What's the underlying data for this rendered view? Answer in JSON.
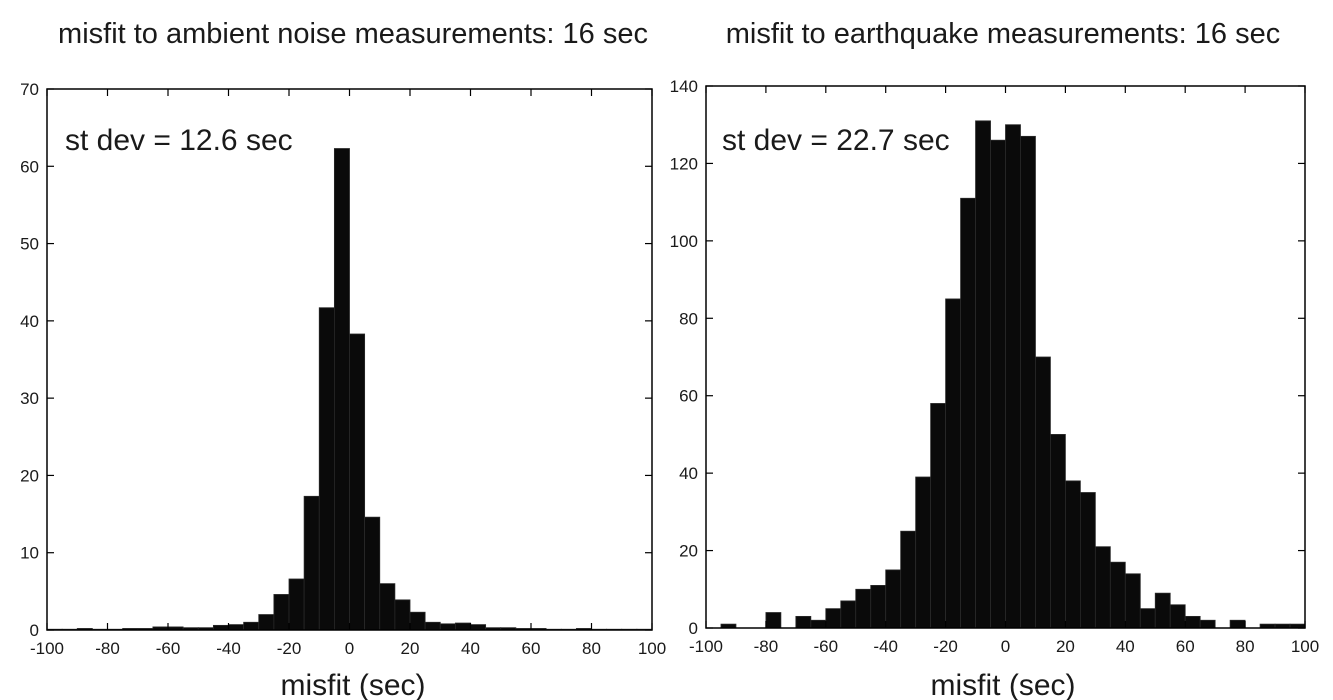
{
  "chart_data": [
    {
      "type": "bar",
      "title": "misfit to ambient noise measurements: 16 sec",
      "xlabel": "misfit (sec)",
      "ylabel": "",
      "annotation": "st dev = 12.6 sec",
      "xlim": [
        -100,
        100
      ],
      "ylim": [
        0,
        70
      ],
      "xticks": [
        -100,
        -80,
        -60,
        -40,
        -20,
        0,
        20,
        40,
        60,
        80,
        100
      ],
      "yticks": [
        0,
        10,
        20,
        30,
        40,
        50,
        60,
        70
      ],
      "bin_width": 5,
      "bin_centers": [
        -97.5,
        -92.5,
        -87.5,
        -82.5,
        -77.5,
        -72.5,
        -67.5,
        -62.5,
        -57.5,
        -52.5,
        -47.5,
        -42.5,
        -37.5,
        -32.5,
        -27.5,
        -22.5,
        -17.5,
        -12.5,
        -7.5,
        -2.5,
        2.5,
        7.5,
        12.5,
        17.5,
        22.5,
        27.5,
        32.5,
        37.5,
        42.5,
        47.5,
        52.5,
        57.5,
        62.5,
        67.5,
        72.5,
        77.5,
        82.5,
        87.5,
        92.5,
        97.5
      ],
      "values": [
        0.1,
        0.1,
        0.2,
        0.1,
        0.1,
        0.2,
        0.2,
        0.4,
        0.4,
        0.3,
        0.3,
        0.6,
        0.7,
        1.0,
        2.0,
        4.6,
        6.6,
        17.3,
        41.7,
        62.3,
        38.3,
        14.6,
        6.0,
        3.9,
        2.3,
        1.0,
        0.8,
        0.9,
        0.7,
        0.3,
        0.3,
        0.2,
        0.2,
        0.1,
        0.1,
        0.2,
        0.1,
        0.1,
        0.1,
        0.1
      ]
    },
    {
      "type": "bar",
      "title": "misfit to earthquake measurements: 16 sec",
      "xlabel": "misfit (sec)",
      "ylabel": "",
      "annotation": "st dev = 22.7 sec",
      "xlim": [
        -100,
        100
      ],
      "ylim": [
        0,
        140
      ],
      "xticks": [
        -100,
        -80,
        -60,
        -40,
        -20,
        0,
        20,
        40,
        60,
        80,
        100
      ],
      "yticks": [
        0,
        20,
        40,
        60,
        80,
        100,
        120,
        140
      ],
      "bin_width": 5,
      "bin_centers": [
        -97.5,
        -92.5,
        -87.5,
        -82.5,
        -77.5,
        -72.5,
        -67.5,
        -62.5,
        -57.5,
        -52.5,
        -47.5,
        -42.5,
        -37.5,
        -32.5,
        -27.5,
        -22.5,
        -17.5,
        -12.5,
        -7.5,
        -2.5,
        2.5,
        7.5,
        12.5,
        17.5,
        22.5,
        27.5,
        32.5,
        37.5,
        42.5,
        47.5,
        52.5,
        57.5,
        62.5,
        67.5,
        72.5,
        77.5,
        82.5,
        87.5,
        92.5,
        97.5
      ],
      "values": [
        0,
        1,
        0,
        0,
        4,
        0,
        3,
        2,
        5,
        7,
        10,
        11,
        15,
        25,
        39,
        58,
        85,
        111,
        131,
        126,
        130,
        127,
        70,
        50,
        38,
        35,
        21,
        17,
        14,
        5,
        9,
        6,
        3,
        2,
        0,
        2,
        0,
        1,
        1,
        1
      ]
    }
  ]
}
